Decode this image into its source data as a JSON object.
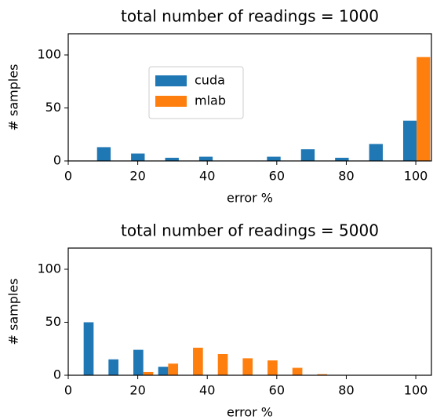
{
  "chart_data": [
    {
      "type": "histogram",
      "title": "total number of readings = 1000",
      "x_label": "error %",
      "y_label": "# samples",
      "bins": [
        7.3,
        17.1,
        26.9,
        36.7,
        46.4,
        56.2,
        66.0,
        75.8,
        85.6,
        95.4,
        105.1
      ],
      "series": [
        {
          "name": "cuda",
          "color": "#1f77b4",
          "values": [
            13,
            7,
            3,
            4,
            0,
            4,
            11,
            3,
            16,
            38
          ]
        },
        {
          "name": "mlab",
          "color": "#ff7f0e",
          "values": [
            0,
            0,
            0,
            0,
            0,
            0,
            0,
            0,
            0,
            98
          ]
        }
      ],
      "xlim": [
        0,
        104.5
      ],
      "xticks": [
        0,
        20,
        40,
        60,
        80,
        100
      ],
      "ylim": [
        0,
        120
      ],
      "yticks": [
        0,
        50,
        100
      ],
      "legend": "center left"
    },
    {
      "type": "histogram",
      "title": "total number of readings = 5000",
      "x_label": "error %",
      "y_label": "# samples",
      "bins": [
        3.72,
        10.87,
        18.02,
        25.17,
        32.32,
        39.47,
        46.62,
        53.77,
        60.92,
        68.07,
        75.22
      ],
      "series": [
        {
          "name": "cuda",
          "color": "#1f77b4",
          "values": [
            50,
            15,
            24,
            8,
            0,
            0,
            0,
            0,
            0,
            0
          ]
        },
        {
          "name": "mlab",
          "color": "#ff7f0e",
          "values": [
            0,
            0,
            3,
            11,
            26,
            20,
            16,
            14,
            7,
            1
          ]
        }
      ],
      "xlim": [
        0,
        104.5
      ],
      "xticks": [
        0,
        20,
        40,
        60,
        80,
        100
      ],
      "ylim": [
        0,
        120
      ],
      "yticks": [
        0,
        50,
        100
      ]
    }
  ]
}
